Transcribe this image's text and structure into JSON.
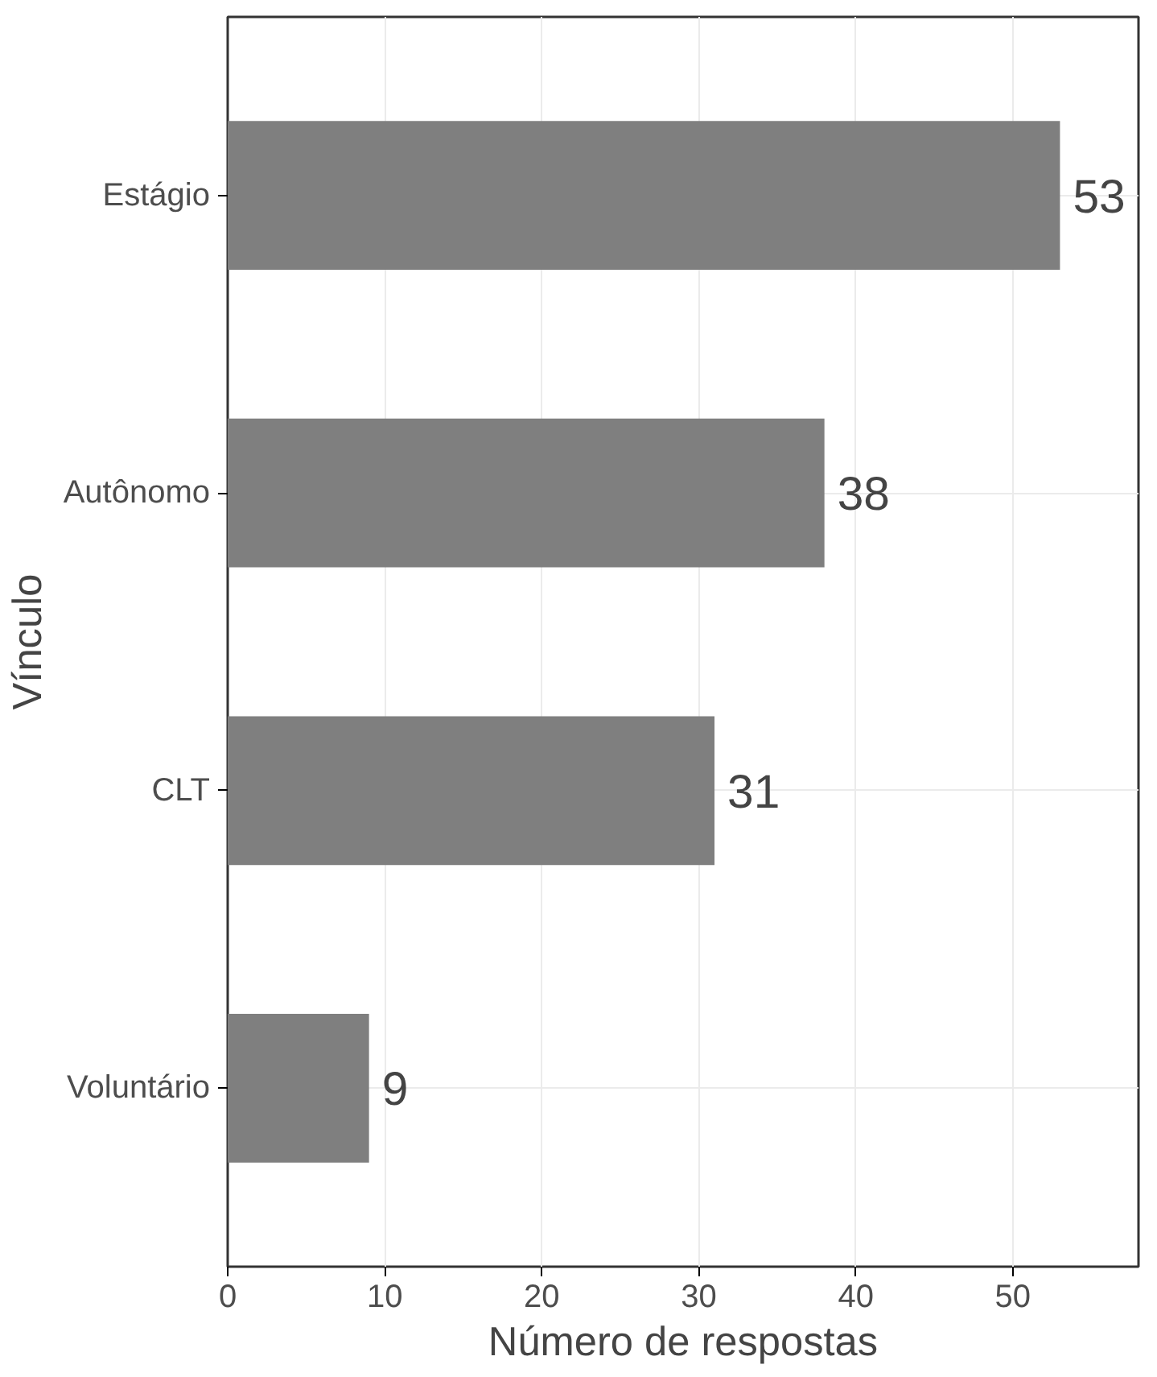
{
  "chart_data": {
    "type": "bar",
    "orientation": "horizontal",
    "categories": [
      "Estágio",
      "Autônomo",
      "CLT",
      "Voluntário"
    ],
    "values": [
      53,
      38,
      31,
      9
    ],
    "color": "#7f7f7f",
    "xlim": [
      0,
      58
    ],
    "xticks": [
      0,
      10,
      20,
      30,
      40,
      50
    ],
    "xlabel": "Número de respostas",
    "ylabel": "Vínculo",
    "data_labels": true,
    "grid": true
  }
}
